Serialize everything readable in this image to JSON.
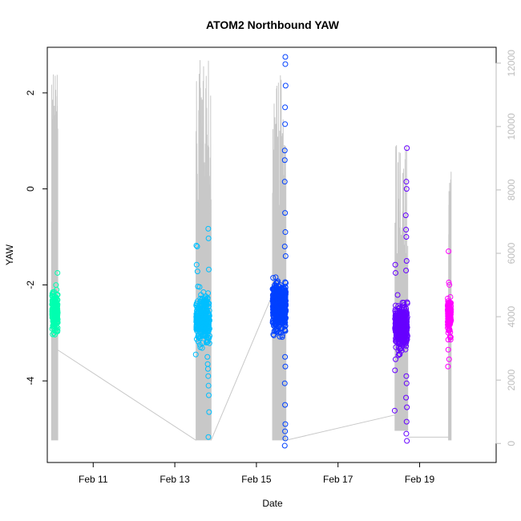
{
  "chart_data": {
    "type": "scatter",
    "title": "ATOM2 Northbound YAW",
    "xlabel": "Date",
    "ylabel": "YAW",
    "xlim": [
      "2023-02-09T21:00",
      "2023-02-20T21:00"
    ],
    "ylim": [
      -5.7,
      2.95
    ],
    "y2lim": [
      -600,
      12500
    ],
    "x_ticks": [
      {
        "date": "2023-02-11",
        "label": "Feb 11"
      },
      {
        "date": "2023-02-13",
        "label": "Feb 13"
      },
      {
        "date": "2023-02-15",
        "label": "Feb 15"
      },
      {
        "date": "2023-02-17",
        "label": "Feb 17"
      },
      {
        "date": "2023-02-19",
        "label": "Feb 19"
      }
    ],
    "y_ticks": [
      2,
      0,
      -2,
      -4
    ],
    "y2_ticks": [
      0,
      2000,
      4000,
      6000,
      8000,
      10000,
      12000
    ],
    "grid": false,
    "series": [
      {
        "color": "#00ffb0",
        "start": "2023-02-09T23:50",
        "end": "2023-02-10T03:10",
        "center": -2.55,
        "spread": 0.18,
        "n": 260,
        "outliers": [
          {
            "t": "2023-02-10T03:00",
            "y": -1.75
          },
          {
            "t": "2023-02-10T00:10",
            "y": -3.03
          },
          {
            "t": "2023-02-10T01:20",
            "y": -2.95
          },
          {
            "t": "2023-02-10T02:30",
            "y": -2.1
          }
        ]
      },
      {
        "color": "#00bfff",
        "start": "2023-02-13T12:30",
        "end": "2023-02-13T20:30",
        "center": -2.7,
        "spread": 0.22,
        "n": 320,
        "outliers": [
          {
            "t": "2023-02-13T12:40",
            "y": -1.18
          },
          {
            "t": "2023-02-13T13:10",
            "y": -1.2
          },
          {
            "t": "2023-02-13T19:40",
            "y": -0.83
          },
          {
            "t": "2023-02-13T19:50",
            "y": -1.03
          },
          {
            "t": "2023-02-13T12:50",
            "y": -1.58
          },
          {
            "t": "2023-02-13T13:20",
            "y": -1.72
          },
          {
            "t": "2023-02-13T20:00",
            "y": -1.68
          },
          {
            "t": "2023-02-13T12:20",
            "y": -3.45
          },
          {
            "t": "2023-02-13T15:00",
            "y": -3.3
          },
          {
            "t": "2023-02-13T19:10",
            "y": -3.5
          },
          {
            "t": "2023-02-13T19:20",
            "y": -3.65
          },
          {
            "t": "2023-02-13T19:30",
            "y": -3.75
          },
          {
            "t": "2023-02-13T19:40",
            "y": -3.9
          },
          {
            "t": "2023-02-13T19:50",
            "y": -4.1
          },
          {
            "t": "2023-02-13T20:00",
            "y": -4.3
          },
          {
            "t": "2023-02-13T20:10",
            "y": -4.65
          },
          {
            "t": "2023-02-13T19:45",
            "y": -5.17
          }
        ]
      },
      {
        "color": "#0040ff",
        "start": "2023-02-15T09:30",
        "end": "2023-02-15T17:20",
        "center": -2.45,
        "spread": 0.22,
        "n": 600,
        "outliers": [
          {
            "t": "2023-02-15T17:00",
            "y": 2.75
          },
          {
            "t": "2023-02-15T17:00",
            "y": 2.6
          },
          {
            "t": "2023-02-15T17:10",
            "y": 2.15
          },
          {
            "t": "2023-02-15T16:50",
            "y": 1.7
          },
          {
            "t": "2023-02-15T16:50",
            "y": 1.35
          },
          {
            "t": "2023-02-15T16:40",
            "y": 0.8
          },
          {
            "t": "2023-02-15T16:40",
            "y": 0.6
          },
          {
            "t": "2023-02-15T16:40",
            "y": 0.15
          },
          {
            "t": "2023-02-15T16:50",
            "y": -0.5
          },
          {
            "t": "2023-02-15T17:00",
            "y": -0.9
          },
          {
            "t": "2023-02-15T16:40",
            "y": -1.2
          },
          {
            "t": "2023-02-15T17:10",
            "y": -1.4
          },
          {
            "t": "2023-02-15T16:50",
            "y": -3.5
          },
          {
            "t": "2023-02-15T17:00",
            "y": -3.7
          },
          {
            "t": "2023-02-15T16:40",
            "y": -4.05
          },
          {
            "t": "2023-02-15T16:50",
            "y": -4.5
          },
          {
            "t": "2023-02-15T17:00",
            "y": -4.9
          },
          {
            "t": "2023-02-15T16:50",
            "y": -5.05
          },
          {
            "t": "2023-02-15T17:00",
            "y": -5.2
          },
          {
            "t": "2023-02-15T16:40",
            "y": -5.35
          }
        ]
      },
      {
        "color": "#6600ff",
        "start": "2023-02-18T09:30",
        "end": "2023-02-18T16:50",
        "center": -2.85,
        "spread": 0.2,
        "n": 420,
        "outliers": [
          {
            "t": "2023-02-18T16:30",
            "y": 0.85
          },
          {
            "t": "2023-02-18T16:10",
            "y": 0.15
          },
          {
            "t": "2023-02-18T16:20",
            "y": 0.0
          },
          {
            "t": "2023-02-18T15:50",
            "y": -0.55
          },
          {
            "t": "2023-02-18T16:00",
            "y": -0.85
          },
          {
            "t": "2023-02-18T16:10",
            "y": -1.0
          },
          {
            "t": "2023-02-18T16:20",
            "y": -1.5
          },
          {
            "t": "2023-02-18T16:00",
            "y": -1.7
          },
          {
            "t": "2023-02-18T09:40",
            "y": -1.58
          },
          {
            "t": "2023-02-18T09:50",
            "y": -1.75
          },
          {
            "t": "2023-02-18T10:00",
            "y": -3.3
          },
          {
            "t": "2023-02-18T09:50",
            "y": -3.55
          },
          {
            "t": "2023-02-18T09:30",
            "y": -3.78
          },
          {
            "t": "2023-02-18T16:10",
            "y": -3.9
          },
          {
            "t": "2023-02-18T16:20",
            "y": -4.05
          },
          {
            "t": "2023-02-18T16:00",
            "y": -4.35
          },
          {
            "t": "2023-02-18T16:30",
            "y": -4.55
          },
          {
            "t": "2023-02-18T09:20",
            "y": -4.62
          },
          {
            "t": "2023-02-18T16:20",
            "y": -4.85
          },
          {
            "t": "2023-02-18T16:10",
            "y": -5.1
          },
          {
            "t": "2023-02-18T16:30",
            "y": -5.25
          }
        ]
      },
      {
        "color": "#ff00ff",
        "start": "2023-02-19T16:30",
        "end": "2023-02-19T18:30",
        "center": -2.65,
        "spread": 0.18,
        "n": 160,
        "outliers": [
          {
            "t": "2023-02-19T17:00",
            "y": -1.3
          },
          {
            "t": "2023-02-19T17:10",
            "y": -1.95
          },
          {
            "t": "2023-02-19T17:30",
            "y": -2.0
          },
          {
            "t": "2023-02-19T16:50",
            "y": -3.35
          },
          {
            "t": "2023-02-19T17:20",
            "y": -3.55
          },
          {
            "t": "2023-02-19T16:40",
            "y": -3.7
          }
        ]
      }
    ],
    "secondary_series": {
      "color": "#c8c8c8",
      "axis": "right",
      "bursts": [
        {
          "start": "2023-02-09T23:30",
          "end": "2023-02-10T03:10",
          "low": 100,
          "high": 12000
        },
        {
          "start": "2023-02-13T12:30",
          "end": "2023-02-13T21:20",
          "low": 100,
          "high": 12200
        },
        {
          "start": "2023-02-15T09:30",
          "end": "2023-02-15T17:20",
          "low": 100,
          "high": 12250
        },
        {
          "start": "2023-02-18T09:30",
          "end": "2023-02-18T17:00",
          "low": 400,
          "high": 9500
        },
        {
          "start": "2023-02-19T17:00",
          "end": "2023-02-19T18:30",
          "low": 100,
          "high": 8600
        }
      ],
      "connectors": [
        {
          "from": {
            "t": "2023-02-10T03:10",
            "v": 2950
          },
          "to": {
            "t": "2023-02-13T12:30",
            "v": 100
          }
        },
        {
          "from": {
            "t": "2023-02-13T21:20",
            "v": 100
          },
          "to": {
            "t": "2023-02-15T09:30",
            "v": 4700
          }
        },
        {
          "from": {
            "t": "2023-02-15T17:20",
            "v": 100
          },
          "to": {
            "t": "2023-02-18T09:30",
            "v": 900
          }
        },
        {
          "from": {
            "t": "2023-02-18T17:00",
            "v": 200
          },
          "to": {
            "t": "2023-02-19T17:00",
            "v": 200
          }
        }
      ]
    }
  }
}
